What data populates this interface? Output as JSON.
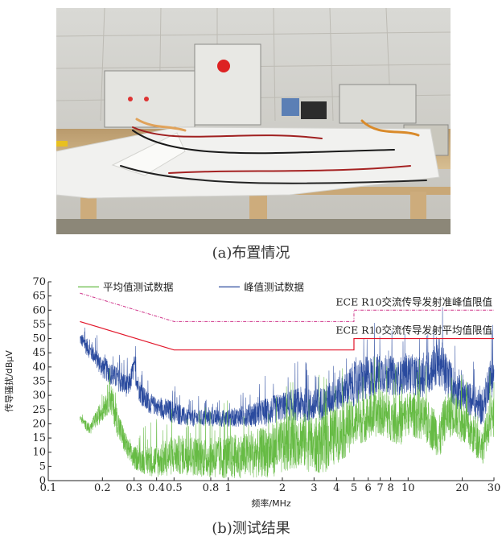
{
  "figure": {
    "caption_a": "(a)布置情况",
    "caption_b": "(b)测试结果"
  },
  "colors": {
    "average": "#66bb44",
    "peak": "#2a4a9e",
    "limit": "#e2162a",
    "limit_peak": "#d0388c"
  },
  "chart_data": {
    "type": "line",
    "x_scale": "log",
    "xlim": [
      0.1,
      30
    ],
    "ylim": [
      0,
      70
    ],
    "xlabel": "频率/MHz",
    "ylabel": "传导骚扰/dBμV",
    "x_ticks": [
      0.1,
      0.2,
      0.3,
      0.4,
      0.5,
      0.8,
      1,
      2,
      3,
      4,
      5,
      6,
      7,
      8,
      10,
      20,
      30
    ],
    "x_tick_labels": [
      "0.1",
      "0.2",
      "0.3",
      "0.4",
      "0.5",
      "0.8",
      "1",
      "2",
      "3",
      "4",
      "5",
      "6",
      "7",
      "8",
      "10",
      "20",
      "30"
    ],
    "y_ticks": [
      0,
      5,
      10,
      15,
      20,
      25,
      30,
      35,
      40,
      45,
      50,
      55,
      60,
      65,
      70
    ],
    "y_tick_labels": [
      "0",
      "5",
      "10",
      "15",
      "20",
      "25",
      "30",
      "35",
      "40",
      "45",
      "50",
      "55",
      "60",
      "65",
      "70"
    ],
    "legend": [
      "平均值测试数据",
      "峰值测试数据"
    ],
    "limit_lines": [
      {
        "name": "ECE R10交流传导发射准峰值限值",
        "x": [
          0.15,
          0.5,
          5,
          5,
          30
        ],
        "y": [
          66,
          56,
          56,
          60,
          60
        ]
      },
      {
        "name": "ECE R10交流传导发射平均值限值",
        "x": [
          0.15,
          0.5,
          5,
          5,
          30
        ],
        "y": [
          56,
          46,
          46,
          50,
          50
        ]
      }
    ],
    "series": [
      {
        "name": "峰值测试数据",
        "x": [
          0.15,
          0.16,
          0.18,
          0.2,
          0.22,
          0.25,
          0.28,
          0.3,
          0.32,
          0.35,
          0.4,
          0.45,
          0.5,
          0.6,
          0.8,
          1,
          1.3,
          1.6,
          2,
          2.5,
          3,
          3.5,
          4,
          4.5,
          5,
          6,
          7,
          8,
          9,
          10,
          12,
          14,
          15,
          16,
          18,
          20,
          23,
          26,
          28,
          30
        ],
        "y": [
          50,
          48,
          44,
          40,
          38,
          35,
          33,
          40,
          32,
          28,
          26,
          25,
          24,
          22,
          22,
          22,
          23,
          24,
          26,
          27,
          26,
          28,
          30,
          32,
          34,
          36,
          38,
          37,
          36,
          38,
          36,
          40,
          42,
          38,
          33,
          30,
          28,
          25,
          35,
          38
        ],
        "band": [
          2,
          3,
          3,
          4,
          4,
          4,
          4,
          4,
          4,
          4,
          3,
          4,
          4,
          3,
          3,
          3,
          4,
          5,
          5,
          6,
          6,
          6,
          6,
          6,
          8,
          8,
          7,
          7,
          6,
          7,
          7,
          8,
          9,
          8,
          7,
          6,
          6,
          6,
          7,
          8
        ]
      },
      {
        "name": "平均值测试数据",
        "x": [
          0.15,
          0.17,
          0.2,
          0.22,
          0.25,
          0.28,
          0.3,
          0.35,
          0.4,
          0.5,
          0.6,
          0.8,
          1,
          1.3,
          1.6,
          2,
          2.5,
          3,
          3.5,
          4,
          4.5,
          5,
          6,
          7,
          8,
          9,
          10,
          12,
          14,
          15,
          16,
          18,
          20,
          23,
          26,
          28,
          30
        ],
        "y": [
          22,
          18,
          25,
          30,
          18,
          10,
          8,
          7,
          7,
          9,
          9,
          8,
          8,
          9,
          10,
          12,
          15,
          12,
          13,
          16,
          18,
          20,
          22,
          24,
          22,
          20,
          24,
          22,
          18,
          15,
          22,
          24,
          20,
          16,
          12,
          20,
          22
        ],
        "band": [
          1,
          2,
          4,
          6,
          5,
          4,
          4,
          5,
          6,
          7,
          7,
          7,
          8,
          8,
          9,
          10,
          10,
          10,
          10,
          10,
          10,
          8,
          8,
          8,
          8,
          8,
          8,
          8,
          8,
          8,
          8,
          8,
          7,
          7,
          6,
          7,
          7
        ]
      }
    ]
  }
}
